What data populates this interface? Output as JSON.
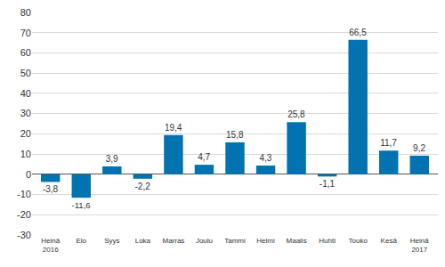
{
  "chart_data": {
    "type": "bar",
    "categories": [
      "Heinä\n2016",
      "Elo",
      "Syys",
      "Loka",
      "Marras",
      "Joulu",
      "Tammi",
      "Helmi",
      "Maalis",
      "Huhti",
      "Touko",
      "Kesä",
      "Heinä\n2017"
    ],
    "values": [
      -3.8,
      -11.6,
      3.9,
      -2.2,
      19.4,
      4.7,
      15.8,
      4.3,
      25.8,
      -1.1,
      66.5,
      11.7,
      9.2
    ],
    "value_labels": [
      "-3,8",
      "-11,6",
      "3,9",
      "-2,2",
      "19,4",
      "4,7",
      "15,8",
      "4,3",
      "25,8",
      "-1,1",
      "66,5",
      "11,7",
      "9,2"
    ],
    "data_labels": true,
    "color": "#0073b0",
    "ylim": [
      -30,
      80
    ],
    "yticks": [
      -30,
      -20,
      -10,
      0,
      10,
      20,
      30,
      40,
      50,
      60,
      70,
      80
    ],
    "grid": true
  }
}
